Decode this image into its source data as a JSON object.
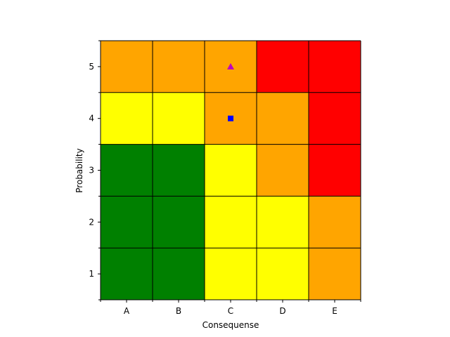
{
  "chart_data": {
    "type": "heatmap",
    "title": "",
    "xlabel": "Consequense",
    "ylabel": "Probability",
    "x_categories": [
      "A",
      "B",
      "C",
      "D",
      "E"
    ],
    "y_categories": [
      "1",
      "2",
      "3",
      "4",
      "5"
    ],
    "colors": {
      "green": "#008000",
      "yellow": "#ffff00",
      "orange": "#ffa500",
      "red": "#ff0000"
    },
    "cells": [
      [
        "green",
        "green",
        "yellow",
        "yellow",
        "orange"
      ],
      [
        "green",
        "green",
        "yellow",
        "yellow",
        "orange"
      ],
      [
        "green",
        "green",
        "yellow",
        "orange",
        "red"
      ],
      [
        "yellow",
        "yellow",
        "orange",
        "orange",
        "red"
      ],
      [
        "orange",
        "orange",
        "orange",
        "red",
        "red"
      ]
    ],
    "grid": true,
    "points": [
      {
        "x": "C",
        "y": 5,
        "marker": "triangle",
        "color": "#bf00bf"
      },
      {
        "x": "C",
        "y": 4,
        "marker": "square",
        "color": "#0000ff"
      }
    ]
  }
}
